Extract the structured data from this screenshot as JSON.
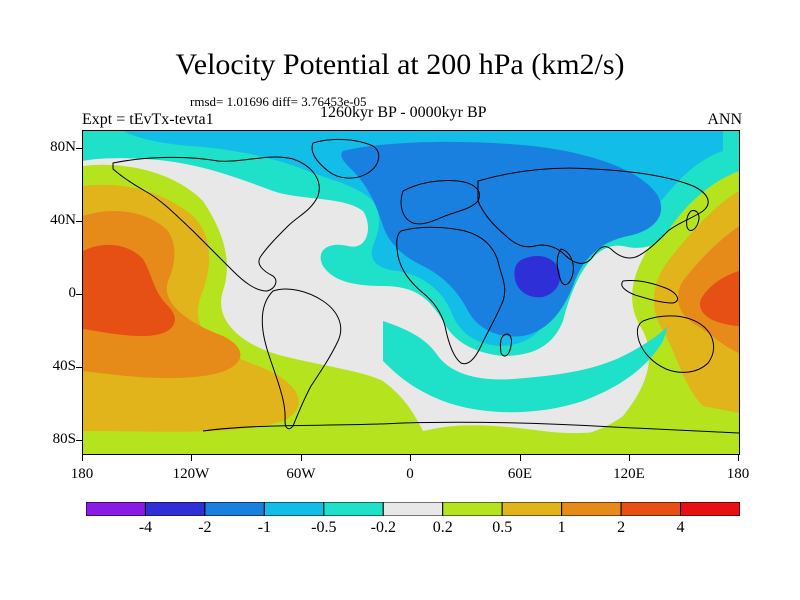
{
  "header": {
    "title": "Velocity Potential at 200 hPa (km2/s)",
    "stats": "rmsd= 1.01696 diff= 3.76453e-05",
    "expt": "Expt = tEvTx-tevta1",
    "period": "1260kyr BP - 0000kyr BP",
    "season": "ANN"
  },
  "axes": {
    "y_ticks": [
      "80N",
      "40N",
      "0",
      "40S",
      "80S"
    ],
    "x_ticks": [
      "180",
      "120W",
      "60W",
      "0",
      "60E",
      "120E",
      "180"
    ]
  },
  "colorbar": {
    "labels": [
      "-4",
      "-2",
      "-1",
      "-0.5",
      "-0.2",
      "0.2",
      "0.5",
      "1",
      "2",
      "4"
    ],
    "colors": [
      "#8a1ae6",
      "#2f2fd8",
      "#1a80e0",
      "#12bde8",
      "#1fe0c8",
      "#e8e8e8",
      "#b5e41e",
      "#e0b41a",
      "#e68a1a",
      "#e65015",
      "#e81010"
    ]
  },
  "map": {
    "colors": {
      "ocean_base": "#1fe0c8",
      "neg_strong": "#2f2fd8",
      "neg_mid": "#1a80e0",
      "neg_weak": "#12bde8",
      "neutral": "#e8e8e8",
      "pos_weak": "#b5e41e",
      "pos_mid": "#e0b41a",
      "pos_strong": "#e68a1a",
      "pos_max": "#e65015",
      "pos_peak": "#e81010"
    }
  }
}
